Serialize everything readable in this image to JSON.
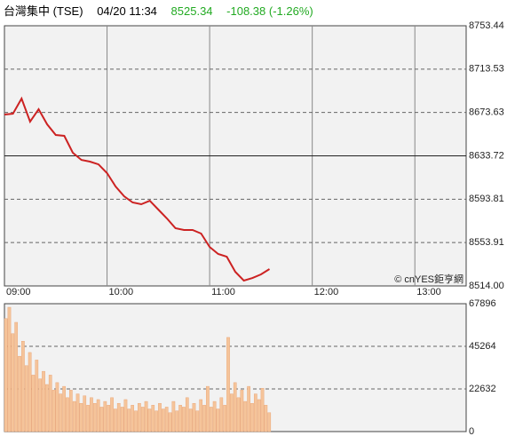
{
  "header": {
    "name": "台灣集中 (TSE)",
    "time": "04/20 11:34",
    "price": "8525.34",
    "change": "-108.38 (-1.26%)",
    "change_color": "#22aa22"
  },
  "chart_data": [
    {
      "type": "line",
      "color": "#cc2222",
      "annotation": "© cnYES鉅亨網",
      "x": [
        "09:00",
        "09:05",
        "09:10",
        "09:15",
        "09:20",
        "09:25",
        "09:30",
        "09:35",
        "09:40",
        "09:45",
        "09:50",
        "09:55",
        "10:00",
        "10:05",
        "10:10",
        "10:15",
        "10:20",
        "10:25",
        "10:30",
        "10:35",
        "10:40",
        "10:45",
        "10:50",
        "10:55",
        "11:00",
        "11:05",
        "11:10",
        "11:15",
        "11:20",
        "11:25",
        "11:30",
        "11:35"
      ],
      "values": [
        8671.7,
        8672.5,
        8686.4,
        8665.2,
        8676.6,
        8662.7,
        8652.9,
        8652.1,
        8636.6,
        8630.0,
        8628.4,
        8625.9,
        8617.8,
        8605.5,
        8596.5,
        8590.8,
        8589.2,
        8592.4,
        8584.3,
        8576.1,
        8567.1,
        8565.5,
        8565.5,
        8562.2,
        8549.9,
        8543.4,
        8540.9,
        8527.0,
        8518.9,
        8521.3,
        8524.6,
        8529.5
      ],
      "xlim": [
        "09:00",
        "13:30"
      ],
      "xticks": [
        "09:00",
        "10:00",
        "11:00",
        "12:00",
        "13:00"
      ],
      "ylim": [
        8514,
        8753.44
      ],
      "yticks": [
        {
          "value": 8514,
          "label": "8514.00"
        },
        8553.91,
        8593.81,
        8633.72,
        8673.63,
        8713.53,
        8753.44
      ],
      "ref_line": 8633.72,
      "grid": true
    },
    {
      "type": "bar",
      "color": "#f5c49a",
      "x": [
        "09:00",
        "09:02",
        "09:04",
        "09:06",
        "09:08",
        "09:10",
        "09:12",
        "09:14",
        "09:16",
        "09:18",
        "09:20",
        "09:22",
        "09:24",
        "09:26",
        "09:28",
        "09:30",
        "09:32",
        "09:34",
        "09:36",
        "09:38",
        "09:40",
        "09:42",
        "09:44",
        "09:46",
        "09:48",
        "09:50",
        "09:52",
        "09:54",
        "09:56",
        "09:58",
        "10:00",
        "10:02",
        "10:04",
        "10:06",
        "10:08",
        "10:10",
        "10:12",
        "10:14",
        "10:16",
        "10:18",
        "10:20",
        "10:22",
        "10:24",
        "10:26",
        "10:28",
        "10:30",
        "10:32",
        "10:34",
        "10:36",
        "10:38",
        "10:40",
        "10:42",
        "10:44",
        "10:46",
        "10:48",
        "10:50",
        "10:52",
        "10:54",
        "10:56",
        "10:58",
        "11:00",
        "11:02",
        "11:04",
        "11:06",
        "11:08",
        "11:10",
        "11:12",
        "11:14",
        "11:16",
        "11:18",
        "11:20",
        "11:22",
        "11:24",
        "11:26",
        "11:28",
        "11:30",
        "11:32",
        "11:34"
      ],
      "values": [
        60000,
        66000,
        52000,
        58000,
        40000,
        48000,
        35000,
        42000,
        30000,
        38000,
        28000,
        32000,
        25000,
        30000,
        22000,
        26000,
        20000,
        24000,
        18000,
        22000,
        16000,
        20000,
        15000,
        19000,
        14000,
        18000,
        15000,
        17000,
        13000,
        16000,
        14000,
        18000,
        12000,
        15000,
        13000,
        17000,
        12000,
        14000,
        11000,
        15000,
        13000,
        16000,
        12000,
        14000,
        11000,
        15000,
        12000,
        13000,
        10000,
        16000,
        11000,
        14000,
        13000,
        18000,
        12000,
        15000,
        11000,
        17000,
        14000,
        24000,
        13000,
        16000,
        12000,
        18000,
        14000,
        50000,
        20000,
        26000,
        18000,
        22000,
        16000,
        24000,
        15000,
        20000,
        17000,
        23000,
        14000,
        10000
      ],
      "xlim": [
        "09:00",
        "13:30"
      ],
      "ylim": [
        0,
        67896
      ],
      "yticks": [
        0,
        22632,
        45264,
        67896
      ],
      "grid": true
    }
  ]
}
